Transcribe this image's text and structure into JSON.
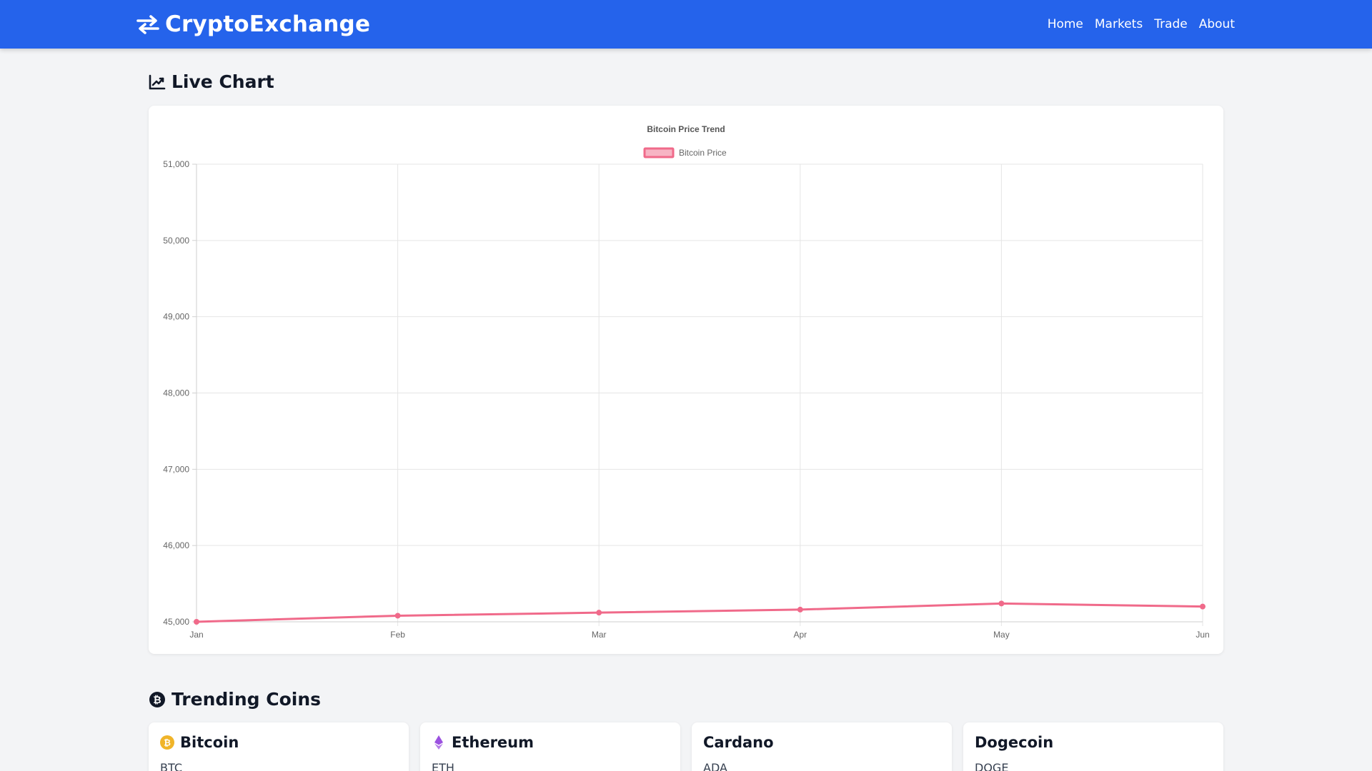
{
  "header": {
    "brand": "CryptoExchange",
    "nav": [
      "Home",
      "Markets",
      "Trade",
      "About"
    ]
  },
  "sections": {
    "chart_title": "Live Chart",
    "trending_title": "Trending Coins"
  },
  "colors": {
    "header_bg": "#2563eb",
    "series": "#f06a8a",
    "bitcoin": "#f0b429",
    "ethereum": "#9b51e0"
  },
  "chart_data": {
    "type": "line",
    "title": "Bitcoin Price Trend",
    "categories": [
      "Jan",
      "Feb",
      "Mar",
      "Apr",
      "May",
      "Jun"
    ],
    "series": [
      {
        "name": "Bitcoin Price",
        "values": [
          45000,
          45080,
          45120,
          45160,
          45240,
          45200
        ]
      }
    ],
    "ylim": [
      45000,
      51000
    ],
    "yticks": [
      45000,
      46000,
      47000,
      48000,
      49000,
      50000,
      51000
    ],
    "ytick_labels": [
      "45,000",
      "46,000",
      "47,000",
      "48,000",
      "49,000",
      "50,000",
      "51,000"
    ],
    "grid": true,
    "legend": "top-center"
  },
  "trending": [
    {
      "name": "Bitcoin",
      "symbol": "BTC",
      "icon": "bitcoin-icon"
    },
    {
      "name": "Ethereum",
      "symbol": "ETH",
      "icon": "ethereum-icon"
    },
    {
      "name": "Cardano",
      "symbol": "ADA",
      "icon": ""
    },
    {
      "name": "Dogecoin",
      "symbol": "DOGE",
      "icon": ""
    }
  ]
}
